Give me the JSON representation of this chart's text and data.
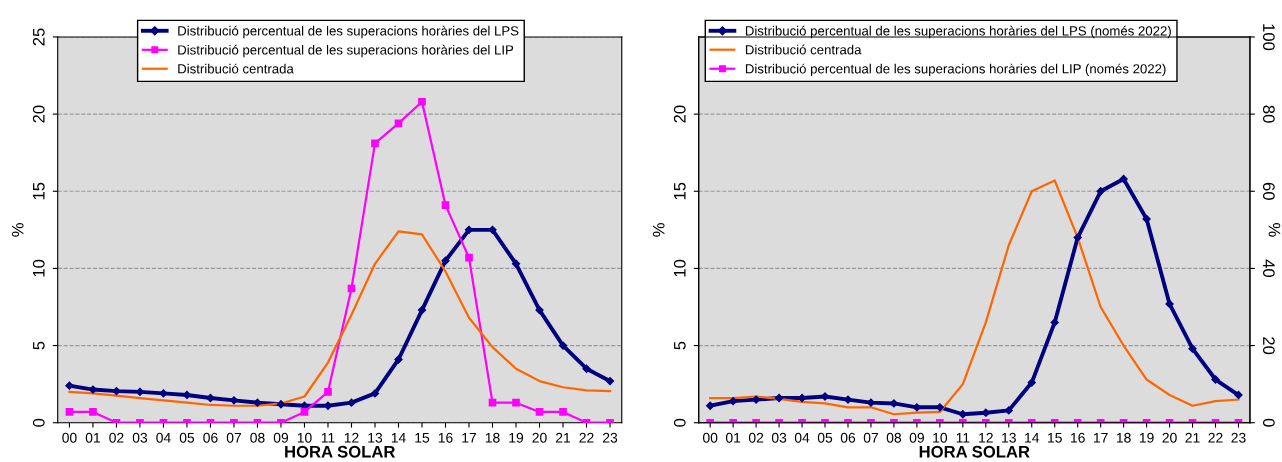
{
  "chart_data": [
    {
      "type": "line",
      "xlabel": "HORA SOLAR",
      "ylabel": "%",
      "categories": [
        "00",
        "01",
        "02",
        "03",
        "04",
        "05",
        "06",
        "07",
        "08",
        "09",
        "10",
        "11",
        "12",
        "13",
        "14",
        "15",
        "16",
        "17",
        "18",
        "19",
        "20",
        "21",
        "22",
        "23"
      ],
      "ylim": [
        0,
        25
      ],
      "yticks": [
        0,
        5,
        10,
        15,
        20,
        25
      ],
      "grid": "y",
      "legend": "top left",
      "series": [
        {
          "name": "Distribució percentual de les superacions horàries del LPS",
          "color": "#000080",
          "marker": "diamond",
          "values": [
            2.4,
            2.15,
            2.05,
            2.0,
            1.9,
            1.8,
            1.6,
            1.45,
            1.3,
            1.2,
            1.1,
            1.1,
            1.3,
            1.9,
            4.1,
            7.3,
            10.5,
            12.5,
            12.5,
            10.3,
            7.3,
            5.0,
            3.5,
            2.7
          ]
        },
        {
          "name": "Distribució percentual de les superacions horàries del LIP",
          "color": "#ff00ff",
          "marker": "square",
          "values": [
            0.7,
            0.7,
            0,
            0,
            0,
            0,
            0,
            0,
            0,
            0,
            0.7,
            2.0,
            8.7,
            18.1,
            19.4,
            20.8,
            14.1,
            10.7,
            1.3,
            1.3,
            0.7,
            0.7,
            0,
            0
          ]
        },
        {
          "name": "Distribució centrada",
          "color": "#ff6600",
          "marker": "none",
          "values": [
            2.0,
            1.9,
            1.75,
            1.6,
            1.45,
            1.3,
            1.15,
            1.1,
            1.1,
            1.25,
            1.7,
            3.9,
            7.0,
            10.3,
            12.4,
            12.2,
            9.8,
            6.8,
            4.9,
            3.5,
            2.7,
            2.3,
            2.1,
            2.05
          ]
        }
      ]
    },
    {
      "type": "line",
      "xlabel": "HORA SOLAR",
      "ylabel": "%",
      "y2label": "%",
      "categories": [
        "00",
        "01",
        "02",
        "03",
        "04",
        "05",
        "06",
        "07",
        "08",
        "09",
        "10",
        "11",
        "12",
        "13",
        "14",
        "15",
        "16",
        "17",
        "18",
        "19",
        "20",
        "21",
        "22",
        "23"
      ],
      "ylim": [
        0,
        25
      ],
      "yticks": [
        0,
        5,
        10,
        15,
        20
      ],
      "y2lim": [
        0,
        100
      ],
      "y2ticks": [
        0,
        20,
        40,
        60,
        80,
        100
      ],
      "grid": "y",
      "legend": "top left",
      "series": [
        {
          "name": "Distribució percentual de les superacions horàries del LPS (només 2022)",
          "color": "#000080",
          "marker": "diamond",
          "values": [
            1.1,
            1.4,
            1.5,
            1.6,
            1.6,
            1.7,
            1.5,
            1.3,
            1.25,
            1.0,
            1.0,
            0.55,
            0.65,
            0.8,
            2.6,
            6.5,
            12.0,
            15.0,
            15.8,
            13.2,
            7.7,
            4.8,
            2.8,
            1.8
          ]
        },
        {
          "name": "Distribució centrada",
          "color": "#ff6600",
          "marker": "none",
          "values": [
            1.6,
            1.6,
            1.7,
            1.55,
            1.35,
            1.25,
            1.0,
            1.0,
            0.55,
            0.65,
            0.7,
            2.5,
            6.5,
            11.5,
            15.0,
            15.7,
            12.0,
            7.5,
            5.0,
            2.8,
            1.8,
            1.1,
            1.4,
            1.5
          ]
        },
        {
          "name": "Distribució percentual de les superacions horàries del LIP (només 2022)",
          "color": "#ff00ff",
          "marker": "square",
          "values": [
            0,
            0,
            0,
            0,
            0,
            0,
            0,
            0,
            0,
            0,
            0,
            0,
            0,
            0,
            0,
            0,
            0,
            0,
            0,
            0,
            0,
            0,
            0,
            0
          ]
        }
      ]
    }
  ]
}
